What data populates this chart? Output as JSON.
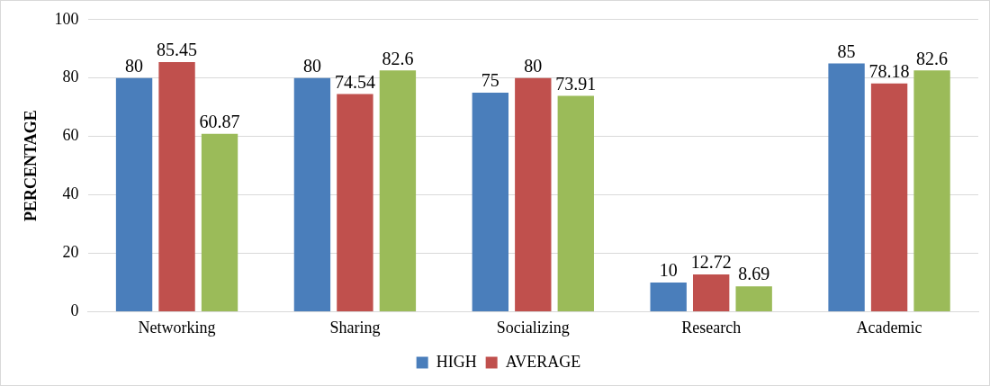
{
  "chart_data": {
    "type": "bar",
    "ylabel": "PERCENTAGE",
    "categories": [
      "Networking",
      "Sharing",
      "Socializing",
      "Research",
      "Academic"
    ],
    "series": [
      {
        "name": "HIGH",
        "color": "#4a7ebb",
        "values": [
          80,
          80,
          75,
          10,
          85
        ]
      },
      {
        "name": "AVERAGE",
        "color": "#c0504d",
        "values": [
          85.45,
          74.54,
          80,
          12.72,
          78.18
        ]
      },
      {
        "color": "#9bbb59",
        "values": [
          60.87,
          82.6,
          73.91,
          8.69,
          82.6
        ]
      }
    ],
    "ylim": [
      0,
      100
    ],
    "yticks": [
      0,
      20,
      40,
      60,
      80,
      100
    ],
    "grid": "y",
    "legend": "bottom",
    "data_labels": true
  }
}
